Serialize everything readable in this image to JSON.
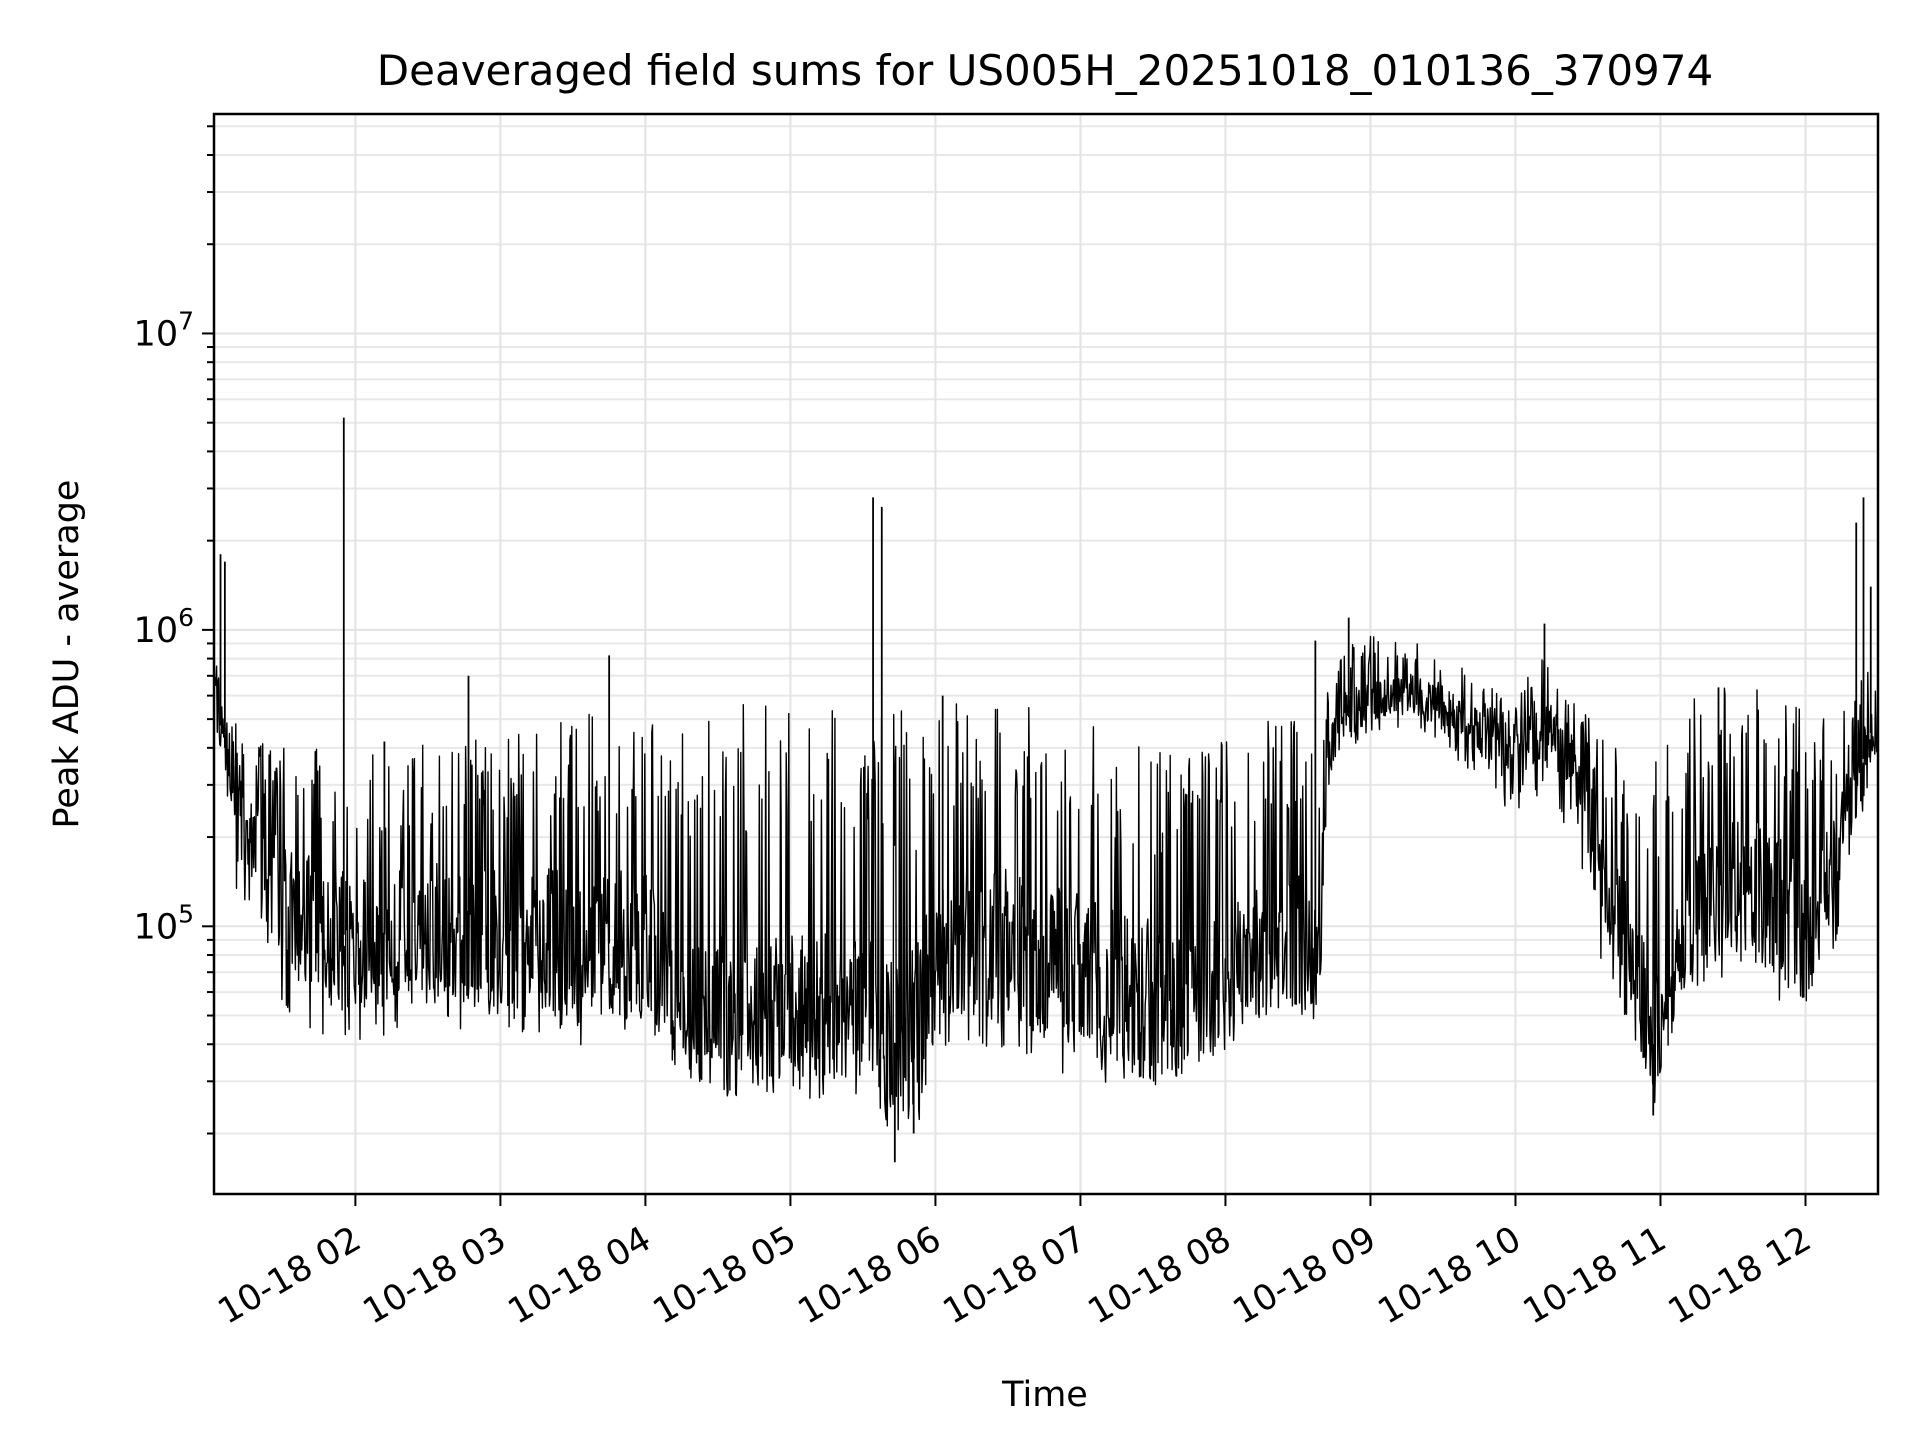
{
  "chart_data": {
    "type": "line",
    "title": "Deaveraged field sums for US005H_20251018_010136_370974",
    "xlabel": "Time",
    "ylabel": "Peak ADU - average",
    "yscale": "log",
    "ylim": [
      12500,
      55000000
    ],
    "xlim_hours": [
      1.025,
      12.5
    ],
    "grid": true,
    "legend": "none",
    "line_color": "#000000",
    "x_ticks": [
      {
        "hour": 2,
        "label": "10-18 02"
      },
      {
        "hour": 3,
        "label": "10-18 03"
      },
      {
        "hour": 4,
        "label": "10-18 04"
      },
      {
        "hour": 5,
        "label": "10-18 05"
      },
      {
        "hour": 6,
        "label": "10-18 06"
      },
      {
        "hour": 7,
        "label": "10-18 07"
      },
      {
        "hour": 8,
        "label": "10-18 08"
      },
      {
        "hour": 9,
        "label": "10-18 09"
      },
      {
        "hour": 10,
        "label": "10-18 10"
      },
      {
        "hour": 11,
        "label": "10-18 11"
      },
      {
        "hour": 12,
        "label": "10-18 12"
      }
    ],
    "y_ticks": [
      {
        "value": 100000,
        "base": "10",
        "exp": "5"
      },
      {
        "value": 1000000,
        "base": "10",
        "exp": "6"
      },
      {
        "value": 10000000,
        "base": "10",
        "exp": "7"
      }
    ],
    "envelope": {
      "hour": [
        1.03,
        1.1,
        1.3,
        1.6,
        2.0,
        2.5,
        3.0,
        3.5,
        4.0,
        4.2,
        4.5,
        5.0,
        5.5,
        5.7,
        5.9,
        6.0,
        6.3,
        6.7,
        7.0,
        7.3,
        7.6,
        7.9,
        8.2,
        8.5,
        8.65,
        8.7,
        8.8,
        9.0,
        9.2,
        9.5,
        9.8,
        10.0,
        10.2,
        10.4,
        10.6,
        10.8,
        10.95,
        11.2,
        11.5,
        11.8,
        12.0,
        12.2,
        12.35,
        12.5
      ],
      "median": [
        600000,
        400000,
        180000,
        110000,
        90000,
        100000,
        90000,
        90000,
        85000,
        60000,
        50000,
        50000,
        50000,
        40000,
        45000,
        80000,
        90000,
        80000,
        70000,
        60000,
        55000,
        60000,
        80000,
        90000,
        80000,
        350000,
        500000,
        580000,
        620000,
        560000,
        430000,
        400000,
        480000,
        350000,
        150000,
        80000,
        40000,
        120000,
        150000,
        120000,
        90000,
        180000,
        300000,
        550000
      ],
      "low": [
        350000,
        200000,
        70000,
        45000,
        40000,
        45000,
        40000,
        38000,
        45000,
        38000,
        35000,
        33000,
        33000,
        22000,
        25000,
        35000,
        40000,
        35000,
        30000,
        27000,
        28000,
        38000,
        45000,
        50000,
        40000,
        280000,
        380000,
        450000,
        470000,
        400000,
        300000,
        220000,
        280000,
        180000,
        70000,
        45000,
        28000,
        60000,
        70000,
        55000,
        45000,
        70000,
        200000,
        350000
      ],
      "high": [
        850000,
        550000,
        420000,
        420000,
        380000,
        420000,
        480000,
        520000,
        560000,
        520000,
        560000,
        580000,
        570000,
        540000,
        550000,
        570000,
        560000,
        560000,
        530000,
        470000,
        400000,
        420000,
        480000,
        520000,
        500000,
        700000,
        900000,
        950000,
        950000,
        850000,
        650000,
        600000,
        850000,
        600000,
        450000,
        350000,
        350000,
        600000,
        700000,
        600000,
        550000,
        500000,
        600000,
        1100000
      ]
    },
    "spikes": [
      {
        "hour": 1.07,
        "value": 1800000
      },
      {
        "hour": 1.1,
        "value": 1700000
      },
      {
        "hour": 1.92,
        "value": 5200000
      },
      {
        "hour": 2.2,
        "value": 420000
      },
      {
        "hour": 2.78,
        "value": 700000
      },
      {
        "hour": 3.75,
        "value": 820000
      },
      {
        "hour": 5.57,
        "value": 2800000
      },
      {
        "hour": 5.63,
        "value": 2600000
      },
      {
        "hour": 5.72,
        "value": 16000
      },
      {
        "hour": 5.85,
        "value": 20000
      },
      {
        "hour": 6.05,
        "value": 600000
      },
      {
        "hour": 8.62,
        "value": 920000
      },
      {
        "hour": 8.85,
        "value": 1100000
      },
      {
        "hour": 10.2,
        "value": 1050000
      },
      {
        "hour": 10.95,
        "value": 23000
      },
      {
        "hour": 11.4,
        "value": 640000
      },
      {
        "hour": 12.35,
        "value": 2300000
      },
      {
        "hour": 12.4,
        "value": 2800000
      },
      {
        "hour": 12.45,
        "value": 1400000
      }
    ]
  }
}
